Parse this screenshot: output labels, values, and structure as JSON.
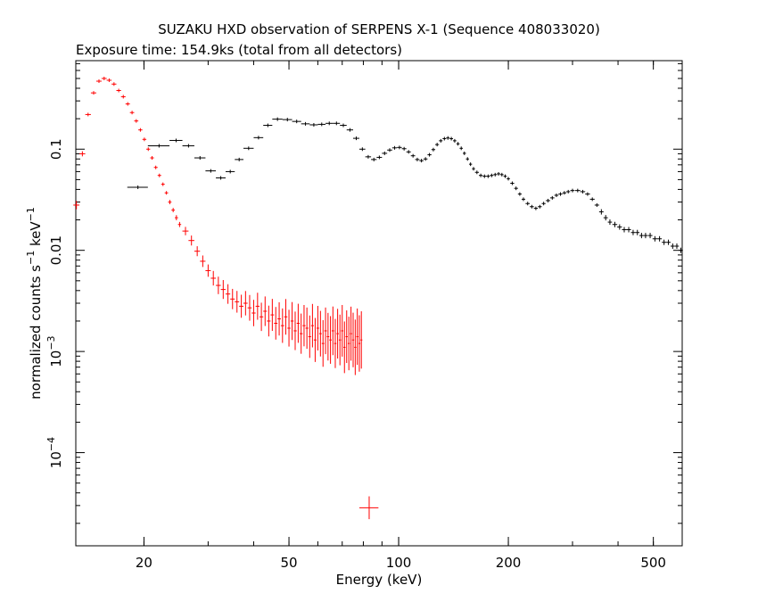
{
  "chart_data": {
    "type": "scatter",
    "title": "SUZAKU HXD observation of SERPENS X-1 (Sequence 408033020)",
    "subtitle": "Exposure time: 154.9ks (total from all detectors)",
    "xlabel": "Energy (keV)",
    "ylabel": {
      "main": "normalized counts s",
      "sup1": "−1",
      "mid": " keV",
      "sup2": "−1"
    },
    "xscale": "log",
    "yscale": "log",
    "xlim": [
      13,
      600
    ],
    "ylim": [
      1.2e-05,
      0.75
    ],
    "grid": false,
    "x_ticks": [
      {
        "value": 20,
        "label": "20"
      },
      {
        "value": 50,
        "label": "50"
      },
      {
        "value": 100,
        "label": "100"
      },
      {
        "value": 200,
        "label": "200"
      },
      {
        "value": 500,
        "label": "500"
      }
    ],
    "y_ticks": [
      {
        "value": 0.1,
        "label": "0.1"
      },
      {
        "value": 0.01,
        "label": "0.01"
      },
      {
        "value": 0.001,
        "base": "10",
        "exp": "−3"
      },
      {
        "value": 0.0001,
        "base": "10",
        "exp": "−4"
      }
    ],
    "series": [
      {
        "color": "#ff0000",
        "points": [
          [
            13.05,
            0.028
          ],
          [
            13.55,
            0.09
          ],
          [
            14.05,
            0.22
          ],
          [
            14.55,
            0.36
          ],
          [
            15.05,
            0.47
          ],
          [
            15.55,
            0.5
          ],
          [
            16.05,
            0.48
          ],
          [
            16.55,
            0.44
          ],
          [
            17.05,
            0.38
          ],
          [
            17.55,
            0.33
          ],
          [
            18.05,
            0.28
          ],
          [
            18.55,
            0.23
          ],
          [
            19.05,
            0.19
          ],
          [
            19.55,
            0.155
          ],
          [
            20.05,
            0.125
          ],
          [
            20.55,
            0.1
          ],
          [
            21.05,
            0.082
          ],
          [
            21.55,
            0.066
          ],
          [
            22.05,
            0.055
          ],
          [
            22.55,
            0.045
          ],
          [
            23.05,
            0.037
          ],
          [
            23.55,
            0.03
          ],
          [
            24.05,
            0.025
          ],
          [
            24.55,
            0.021
          ],
          [
            25.05,
            0.018
          ],
          [
            26.0,
            0.0155
          ],
          [
            27.0,
            0.0125
          ],
          [
            28.0,
            0.0098
          ],
          [
            29.0,
            0.0078
          ],
          [
            30.0,
            0.0063
          ],
          [
            31.0,
            0.0053
          ],
          [
            32.0,
            0.0045
          ],
          [
            33.0,
            0.0041
          ],
          [
            34.0,
            0.0037
          ],
          [
            35.0,
            0.0033
          ],
          [
            36.0,
            0.0031
          ],
          [
            37.0,
            0.0028
          ],
          [
            38.0,
            0.003
          ],
          [
            39.0,
            0.0027
          ],
          [
            40.0,
            0.0024
          ],
          [
            41.0,
            0.0028
          ],
          [
            42.0,
            0.0022
          ],
          [
            43.0,
            0.0025
          ],
          [
            44.0,
            0.002
          ],
          [
            45.0,
            0.0023
          ],
          [
            46.0,
            0.0019
          ],
          [
            47.0,
            0.0021
          ],
          [
            48.0,
            0.0018
          ],
          [
            49.0,
            0.0022
          ],
          [
            50.0,
            0.0017
          ],
          [
            51.0,
            0.002
          ],
          [
            52.0,
            0.0016
          ],
          [
            53.0,
            0.0019
          ],
          [
            54.0,
            0.0015
          ],
          [
            55.0,
            0.0018
          ],
          [
            56.0,
            0.0017
          ],
          [
            57.0,
            0.0014
          ],
          [
            58.0,
            0.0018
          ],
          [
            59.0,
            0.0013
          ],
          [
            60.0,
            0.0017
          ],
          [
            61.0,
            0.0015
          ],
          [
            62.0,
            0.0012
          ],
          [
            63.0,
            0.0016
          ],
          [
            64.0,
            0.0014
          ],
          [
            65.0,
            0.0013
          ],
          [
            66.0,
            0.0016
          ],
          [
            67.0,
            0.0012
          ],
          [
            68.0,
            0.0015
          ],
          [
            69.0,
            0.0013
          ],
          [
            70.0,
            0.0016
          ],
          [
            71.0,
            0.0011
          ],
          [
            72.0,
            0.0014
          ],
          [
            73.0,
            0.0012
          ],
          [
            74.0,
            0.0015
          ],
          [
            75.0,
            0.0013
          ],
          [
            76.0,
            0.0011
          ],
          [
            77.0,
            0.0014
          ],
          [
            78.0,
            0.0012
          ],
          [
            79.0,
            0.0013
          ]
        ],
        "error_span_factor": [
          1.1,
          1.06,
          1.04,
          1.03,
          1.02,
          1.02,
          1.02,
          1.02,
          1.02,
          1.02,
          1.02,
          1.02,
          1.02,
          1.02,
          1.03,
          1.03,
          1.03,
          1.03,
          1.04,
          1.04,
          1.04,
          1.05,
          1.05,
          1.06,
          1.06,
          1.1,
          1.12,
          1.12,
          1.14,
          1.15,
          1.18,
          1.22,
          1.24,
          1.25,
          1.26,
          1.28,
          1.3,
          1.32,
          1.34,
          1.35,
          1.36,
          1.38,
          1.4,
          1.42,
          1.44,
          1.45,
          1.46,
          1.48,
          1.5,
          1.52,
          1.54,
          1.55,
          1.56,
          1.58,
          1.6,
          1.6,
          1.62,
          1.64,
          1.65,
          1.66,
          1.68,
          1.7,
          1.7,
          1.72,
          1.72,
          1.74,
          1.75,
          1.76,
          1.78,
          1.8,
          1.8,
          1.82,
          1.84,
          1.85,
          1.86,
          1.88,
          1.9,
          1.9,
          1.92
        ],
        "extra_points": [
          {
            "x": 83.0,
            "y": 2.85e-05,
            "x_low": 78.0,
            "x_high": 88.0,
            "y_low": 2.2e-05,
            "y_high": 3.7e-05
          }
        ]
      },
      {
        "color": "#000000",
        "points": [
          [
            19.25,
            0.042
          ],
          [
            22.0,
            0.108
          ],
          [
            24.5,
            0.122
          ],
          [
            26.5,
            0.108
          ],
          [
            28.5,
            0.082
          ],
          [
            30.5,
            0.061
          ],
          [
            32.5,
            0.052
          ],
          [
            34.5,
            0.06
          ],
          [
            36.5,
            0.079
          ],
          [
            38.75,
            0.102
          ],
          [
            41.25,
            0.13
          ],
          [
            43.75,
            0.172
          ],
          [
            46.5,
            0.198
          ],
          [
            49.5,
            0.196
          ],
          [
            52.5,
            0.188
          ],
          [
            55.5,
            0.178
          ],
          [
            58.5,
            0.174
          ],
          [
            61.5,
            0.176
          ],
          [
            64.5,
            0.18
          ],
          [
            67.5,
            0.18
          ],
          [
            70.5,
            0.172
          ],
          [
            73.5,
            0.155
          ],
          [
            76.5,
            0.128
          ],
          [
            79.5,
            0.1
          ],
          [
            82.5,
            0.084
          ],
          [
            85.5,
            0.079
          ],
          [
            88.5,
            0.083
          ],
          [
            91.5,
            0.091
          ],
          [
            94.5,
            0.098
          ],
          [
            97.5,
            0.103
          ],
          [
            100.5,
            0.104
          ],
          [
            103.5,
            0.101
          ],
          [
            106.5,
            0.094
          ],
          [
            109.5,
            0.086
          ],
          [
            112.5,
            0.079
          ],
          [
            115.5,
            0.077
          ],
          [
            118.5,
            0.08
          ],
          [
            121.5,
            0.088
          ],
          [
            124.5,
            0.099
          ],
          [
            127.5,
            0.111
          ],
          [
            130.5,
            0.121
          ],
          [
            133.5,
            0.127
          ],
          [
            136.5,
            0.129
          ],
          [
            139.5,
            0.127
          ],
          [
            142.5,
            0.121
          ],
          [
            145.5,
            0.113
          ],
          [
            148.5,
            0.102
          ],
          [
            151.5,
            0.091
          ],
          [
            154.5,
            0.08
          ],
          [
            157.5,
            0.071
          ],
          [
            160.5,
            0.064
          ],
          [
            164.0,
            0.059
          ],
          [
            168.0,
            0.055
          ],
          [
            172.0,
            0.054
          ],
          [
            176.0,
            0.054
          ],
          [
            180.0,
            0.055
          ],
          [
            184.0,
            0.056
          ],
          [
            188.0,
            0.057
          ],
          [
            192.0,
            0.056
          ],
          [
            196.0,
            0.054
          ],
          [
            200.0,
            0.051
          ],
          [
            205.0,
            0.046
          ],
          [
            210.0,
            0.041
          ],
          [
            215.0,
            0.036
          ],
          [
            220.0,
            0.032
          ],
          [
            226.0,
            0.029
          ],
          [
            232.0,
            0.027
          ],
          [
            238.0,
            0.026
          ],
          [
            244.0,
            0.027
          ],
          [
            250.0,
            0.029
          ],
          [
            257.0,
            0.031
          ],
          [
            264.0,
            0.033
          ],
          [
            271.0,
            0.035
          ],
          [
            278.0,
            0.036
          ],
          [
            285.0,
            0.037
          ],
          [
            292.0,
            0.038
          ],
          [
            300.0,
            0.039
          ],
          [
            310.0,
            0.039
          ],
          [
            320.0,
            0.038
          ],
          [
            330.0,
            0.036
          ],
          [
            340.0,
            0.032
          ],
          [
            350.0,
            0.028
          ],
          [
            360.0,
            0.024
          ],
          [
            370.0,
            0.021
          ],
          [
            380.0,
            0.019
          ],
          [
            392.0,
            0.018
          ],
          [
            404.0,
            0.017
          ],
          [
            416.0,
            0.016
          ],
          [
            428.0,
            0.016
          ],
          [
            440.0,
            0.015
          ],
          [
            452.0,
            0.015
          ],
          [
            464.0,
            0.014
          ],
          [
            476.0,
            0.014
          ],
          [
            490.0,
            0.014
          ],
          [
            505.0,
            0.013
          ],
          [
            520.0,
            0.013
          ],
          [
            535.0,
            0.012
          ],
          [
            550.0,
            0.012
          ],
          [
            565.0,
            0.011
          ],
          [
            580.0,
            0.011
          ],
          [
            595.0,
            0.01
          ]
        ],
        "x_halfwidth": [
          1.25,
          1.5,
          1.0,
          1.0,
          1.0,
          1.0,
          1.0,
          1.0,
          1.0,
          1.25,
          1.25,
          1.25,
          1.5,
          1.5,
          1.5,
          1.5,
          1.5,
          1.5,
          1.5,
          1.5,
          1.5,
          1.5,
          1.5,
          1.5,
          1.5,
          1.5,
          1.5,
          1.5,
          1.5,
          1.5,
          1.5,
          1.5,
          1.5,
          1.5,
          1.5,
          1.5,
          1.5,
          1.5,
          1.5,
          1.5,
          1.5,
          1.5,
          1.5,
          1.5,
          1.5,
          1.5,
          1.5,
          1.5,
          1.5,
          1.5,
          1.5,
          2.0,
          2.0,
          2.0,
          2.0,
          2.0,
          2.0,
          2.0,
          2.0,
          2.0,
          2.0,
          2.5,
          2.5,
          2.5,
          2.5,
          3.0,
          3.0,
          3.0,
          3.0,
          3.0,
          3.5,
          3.5,
          3.5,
          3.5,
          3.5,
          3.5,
          4.0,
          5.0,
          5.0,
          5.0,
          5.0,
          5.0,
          5.0,
          5.0,
          5.0,
          6.0,
          6.0,
          6.0,
          6.0,
          6.0,
          6.0,
          6.0,
          6.0,
          7.0,
          7.5,
          7.5,
          7.5,
          7.5,
          7.5,
          7.5,
          7.5
        ]
      }
    ]
  }
}
